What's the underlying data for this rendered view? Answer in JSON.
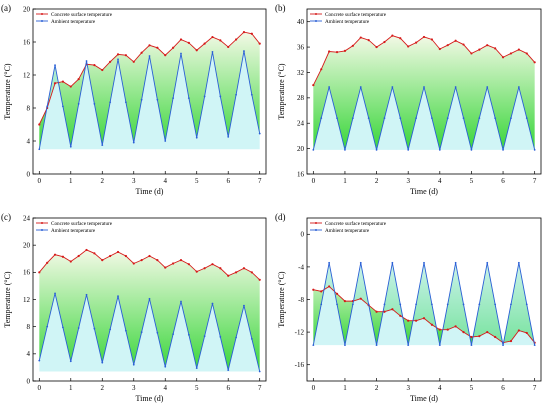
{
  "colors": {
    "surface": "#d61a1a",
    "ambient": "#2a5fd6",
    "fill_top": "#f3f9e6",
    "fill_bottom": "#39d63a",
    "ambient_fill": "#a9ecef"
  },
  "chart_data": [
    {
      "type": "line",
      "panel_label": "(a)",
      "xlabel": "Time (d)",
      "ylabel": "Temperature (°C)",
      "xlim": [
        -0.2,
        7.2
      ],
      "ylim": [
        0,
        20
      ],
      "xticks": [
        "0",
        "1",
        "2",
        "3",
        "4",
        "5",
        "6",
        "7"
      ],
      "yticks": [
        "0",
        "4",
        "8",
        "12",
        "16",
        "20"
      ],
      "grid": false,
      "legend": "top-left",
      "series": [
        {
          "name": "Concrete surface temperature",
          "x": [
            0,
            0.25,
            0.5,
            0.75,
            1,
            1.25,
            1.5,
            1.75,
            2,
            2.25,
            2.5,
            2.75,
            3,
            3.25,
            3.5,
            3.75,
            4,
            4.25,
            4.5,
            4.75,
            5,
            5.25,
            5.5,
            5.75,
            6,
            6.25,
            6.5,
            6.75,
            7
          ],
          "y": [
            6,
            8,
            11,
            11.2,
            10.6,
            11.5,
            13.3,
            13.2,
            12.6,
            13.6,
            14.5,
            14.4,
            13.6,
            14.7,
            15.6,
            15.3,
            14.4,
            15.3,
            16.3,
            15.9,
            15,
            15.8,
            16.6,
            16.2,
            15.4,
            16.3,
            17.2,
            17,
            15.8
          ]
        },
        {
          "name": "Ambient temperature",
          "x": [
            0,
            0.25,
            0.5,
            0.75,
            1,
            1.25,
            1.5,
            1.75,
            2,
            2.25,
            2.5,
            2.75,
            3,
            3.25,
            3.5,
            3.75,
            4,
            4.25,
            4.5,
            4.75,
            5,
            5.25,
            5.5,
            5.75,
            6,
            6.25,
            6.5,
            6.75,
            7
          ],
          "y": [
            3,
            8.2,
            13.2,
            8.2,
            3.3,
            8.5,
            13.7,
            8.5,
            3.5,
            8.7,
            13.9,
            8.7,
            3.8,
            9,
            14.3,
            9,
            4,
            9.2,
            14.6,
            9.2,
            4.4,
            9.4,
            14.8,
            9.4,
            4.5,
            9.6,
            14.9,
            9.6,
            4.9
          ]
        }
      ]
    },
    {
      "type": "line",
      "panel_label": "(b)",
      "xlabel": "Time (d)",
      "ylabel": "Temperature (°C)",
      "xlim": [
        -0.2,
        7.2
      ],
      "ylim": [
        16,
        42
      ],
      "xticks": [
        "0",
        "1",
        "2",
        "3",
        "4",
        "5",
        "6",
        "7"
      ],
      "yticks": [
        "16",
        "20",
        "24",
        "28",
        "32",
        "36",
        "40"
      ],
      "grid": false,
      "legend": "top-left",
      "series": [
        {
          "name": "Concrete surface temperature",
          "x": [
            0,
            0.25,
            0.5,
            0.75,
            1,
            1.25,
            1.5,
            1.75,
            2,
            2.25,
            2.5,
            2.75,
            3,
            3.25,
            3.5,
            3.75,
            4,
            4.25,
            4.5,
            4.75,
            5,
            5.25,
            5.5,
            5.75,
            6,
            6.25,
            6.5,
            6.75,
            7
          ],
          "y": [
            30,
            32.5,
            35.3,
            35.2,
            35.4,
            36.2,
            37.5,
            37.1,
            36,
            36.8,
            37.8,
            37.4,
            36.1,
            36.7,
            37.6,
            37.2,
            35.7,
            36.3,
            37,
            36.4,
            35,
            35.6,
            36.3,
            35.8,
            34.4,
            35,
            35.6,
            35,
            33.6
          ]
        },
        {
          "name": "Ambient temperature",
          "x": [
            0,
            0.25,
            0.5,
            0.75,
            1,
            1.25,
            1.5,
            1.75,
            2,
            2.25,
            2.5,
            2.75,
            3,
            3.25,
            3.5,
            3.75,
            4,
            4.25,
            4.5,
            4.75,
            5,
            5.25,
            5.5,
            5.75,
            6,
            6.25,
            6.5,
            6.75,
            7
          ],
          "y": [
            19.8,
            24.8,
            29.7,
            24.8,
            19.8,
            24.8,
            29.7,
            24.8,
            19.8,
            24.8,
            29.7,
            24.8,
            19.8,
            24.8,
            29.7,
            24.8,
            19.8,
            24.8,
            29.7,
            24.8,
            19.8,
            24.8,
            29.7,
            24.8,
            19.8,
            24.8,
            29.7,
            24.8,
            19.8
          ]
        }
      ]
    },
    {
      "type": "line",
      "panel_label": "(c)",
      "xlabel": "Time (d)",
      "ylabel": "Temperature (°C)",
      "xlim": [
        -0.2,
        7.2
      ],
      "ylim": [
        0,
        24
      ],
      "xticks": [
        "0",
        "1",
        "2",
        "3",
        "4",
        "5",
        "6",
        "7"
      ],
      "yticks": [
        "0",
        "4",
        "8",
        "12",
        "16",
        "20",
        "24"
      ],
      "grid": false,
      "legend": "top-left",
      "series": [
        {
          "name": "Concrete surface temperature",
          "x": [
            0,
            0.25,
            0.5,
            0.75,
            1,
            1.25,
            1.5,
            1.75,
            2,
            2.25,
            2.5,
            2.75,
            3,
            3.25,
            3.5,
            3.75,
            4,
            4.25,
            4.5,
            4.75,
            5,
            5.25,
            5.5,
            5.75,
            6,
            6.25,
            6.5,
            6.75,
            7
          ],
          "y": [
            16,
            17.4,
            18.6,
            18.3,
            17.6,
            18.4,
            19.3,
            18.8,
            17.8,
            18.4,
            19,
            18.4,
            17.3,
            17.8,
            18.4,
            17.8,
            16.7,
            17.3,
            17.8,
            17.2,
            16.1,
            16.6,
            17.2,
            16.6,
            15.5,
            16,
            16.6,
            16,
            14.9
          ]
        },
        {
          "name": "Ambient temperature",
          "x": [
            0,
            0.25,
            0.5,
            0.75,
            1,
            1.25,
            1.5,
            1.75,
            2,
            2.25,
            2.5,
            2.75,
            3,
            3.25,
            3.5,
            3.75,
            4,
            4.25,
            4.5,
            4.75,
            5,
            5.25,
            5.5,
            5.75,
            6,
            6.25,
            6.5,
            6.75,
            7
          ],
          "y": [
            3,
            8,
            12.9,
            7.9,
            2.9,
            7.8,
            12.7,
            7.7,
            2.7,
            7.6,
            12.5,
            7.4,
            2.4,
            7.2,
            12.1,
            7.1,
            2.1,
            6.9,
            11.7,
            6.8,
            1.9,
            6.6,
            11.4,
            6.5,
            1.6,
            6.4,
            11.1,
            6.2,
            1.4
          ]
        }
      ]
    },
    {
      "type": "line",
      "panel_label": "(d)",
      "xlabel": "Time (d)",
      "ylabel": "Temperature (°C)",
      "xlim": [
        -0.2,
        7.2
      ],
      "ylim": [
        -18,
        2
      ],
      "xticks": [
        "0",
        "1",
        "2",
        "3",
        "4",
        "5",
        "6",
        "7"
      ],
      "yticks": [
        "-16",
        "-12",
        "-8",
        "-4",
        "0"
      ],
      "grid": false,
      "legend": "top-left",
      "series": [
        {
          "name": "Concrete surface temperature",
          "x": [
            0,
            0.25,
            0.5,
            0.75,
            1,
            1.25,
            1.5,
            1.75,
            2,
            2.25,
            2.5,
            2.75,
            3,
            3.25,
            3.5,
            3.75,
            4,
            4.25,
            4.5,
            4.75,
            5,
            5.25,
            5.5,
            5.75,
            6,
            6.25,
            6.5,
            6.75,
            7
          ],
          "y": [
            -6.8,
            -7,
            -6.4,
            -7.3,
            -8.2,
            -8.2,
            -7.9,
            -8.7,
            -9.5,
            -9.5,
            -9.2,
            -10,
            -10.6,
            -10.6,
            -10.3,
            -11.1,
            -11.7,
            -11.7,
            -11.3,
            -12,
            -12.6,
            -12.5,
            -12,
            -12.6,
            -13.3,
            -13.1,
            -11.8,
            -12.1,
            -13.3
          ]
        },
        {
          "name": "Ambient temperature",
          "x": [
            0,
            0.25,
            0.5,
            0.75,
            1,
            1.25,
            1.5,
            1.75,
            2,
            2.25,
            2.5,
            2.75,
            3,
            3.25,
            3.5,
            3.75,
            4,
            4.25,
            4.5,
            4.75,
            5,
            5.25,
            5.5,
            5.75,
            6,
            6.25,
            6.5,
            6.75,
            7
          ],
          "y": [
            -13.6,
            -8.6,
            -3.5,
            -8.6,
            -13.6,
            -8.6,
            -3.5,
            -8.6,
            -13.6,
            -8.6,
            -3.5,
            -8.6,
            -13.6,
            -8.6,
            -3.5,
            -8.6,
            -13.6,
            -8.6,
            -3.5,
            -8.6,
            -13.6,
            -8.6,
            -3.5,
            -8.6,
            -13.6,
            -8.6,
            -3.5,
            -8.6,
            -13.6
          ]
        }
      ]
    }
  ]
}
